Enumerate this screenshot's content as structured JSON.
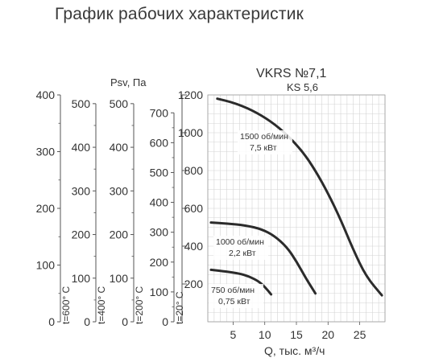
{
  "page_title": "График рабочих характеристик",
  "chart_data": {
    "type": "line",
    "model": "VKRS №7,1",
    "submodel": "KS 5,6",
    "xlabel": "Q, тыс. м³/ч",
    "xlim": [
      1,
      29
    ],
    "x_ticks": [
      5,
      10,
      15,
      20,
      25
    ],
    "ylabel": "Psv, Па",
    "ylim": [
      0,
      1200
    ],
    "y_ticks": [
      200,
      400,
      600,
      800,
      1000,
      1200
    ],
    "grid": true,
    "pressure_scales": [
      {
        "label": "t=20° C",
        "max": 700,
        "ticks": [
          0,
          100,
          200,
          300,
          400,
          500,
          600,
          700
        ]
      },
      {
        "label": "t=200° C",
        "max": 500,
        "ticks": [
          0,
          100,
          200,
          300,
          400,
          500
        ]
      },
      {
        "label": "t=400° C",
        "max": 500,
        "ticks": [
          0,
          100,
          200,
          300,
          400,
          500
        ]
      },
      {
        "label": "t=600° C",
        "max": 400,
        "ticks": [
          0,
          100,
          200,
          300,
          400
        ]
      }
    ],
    "series": [
      {
        "name": "1500 об/мин",
        "power": "7,5 кВт",
        "points": [
          [
            2.5,
            1180
          ],
          [
            5,
            1160
          ],
          [
            8,
            1120
          ],
          [
            11,
            1060
          ],
          [
            13.5,
            990
          ],
          [
            16,
            900
          ],
          [
            18,
            800
          ],
          [
            20,
            680
          ],
          [
            22,
            540
          ],
          [
            24,
            380
          ],
          [
            26,
            240
          ],
          [
            28.5,
            140
          ]
        ]
      },
      {
        "name": "1000 об/мин",
        "power": "2,2 кВт",
        "points": [
          [
            1.5,
            525
          ],
          [
            4,
            520
          ],
          [
            7,
            510
          ],
          [
            9.5,
            490
          ],
          [
            11.5,
            455
          ],
          [
            13.5,
            395
          ],
          [
            15,
            320
          ],
          [
            16.5,
            230
          ],
          [
            18,
            150
          ]
        ]
      },
      {
        "name": "750 об/мин",
        "power": "0,75 кВт",
        "points": [
          [
            1.5,
            275
          ],
          [
            4,
            265
          ],
          [
            6,
            255
          ],
          [
            7.5,
            240
          ],
          [
            9,
            215
          ],
          [
            10,
            185
          ],
          [
            11,
            145
          ]
        ]
      }
    ]
  }
}
